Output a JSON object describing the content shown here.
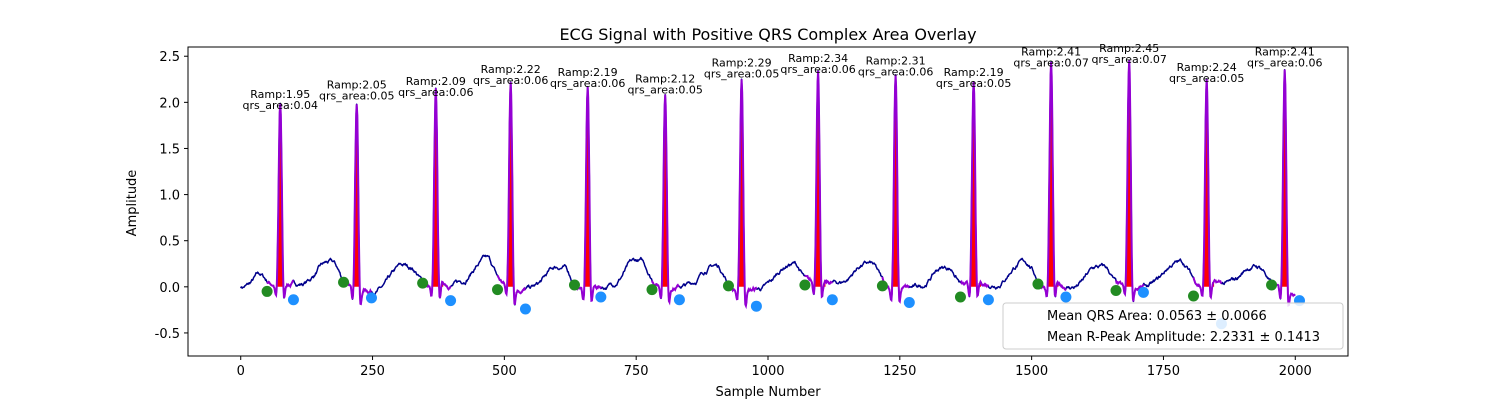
{
  "chart_data": {
    "type": "line",
    "title": "ECG Signal with Positive QRS Complex Area Overlay",
    "xlabel": "Sample Number",
    "ylabel": "Amplitude",
    "xlim": [
      -100,
      2100
    ],
    "ylim": [
      -0.75,
      2.6
    ],
    "xticks": [
      0,
      250,
      500,
      750,
      1000,
      1250,
      1500,
      1750,
      2000
    ],
    "yticks": [
      -0.5,
      0.0,
      0.5,
      1.0,
      1.5,
      2.0,
      2.5
    ],
    "legend": {
      "placement": "lower-right",
      "entries": [
        "Mean QRS Area: 0.0563 ± 0.0066",
        "Mean R-Peak Amplitude: 2.2331 ± 0.1413"
      ]
    },
    "colors": {
      "ecg": "#00008b",
      "qrs_segment": "#9400d3",
      "qrs_area": "#ff0000",
      "onset_marker": "#228b22",
      "offset_marker": "#1e90ff"
    },
    "beats": [
      {
        "r": 75,
        "ramp": 1.95,
        "area": 0.04,
        "onset": [
          50,
          -0.05
        ],
        "offset": [
          100,
          -0.14
        ],
        "ramp_label": "Ramp:1.95",
        "area_label": "qrs_area:0.04"
      },
      {
        "r": 220,
        "ramp": 2.05,
        "area": 0.05,
        "onset": [
          195,
          0.05
        ],
        "offset": [
          248,
          -0.12
        ],
        "ramp_label": "Ramp:2.05",
        "area_label": "qrs_area:0.05"
      },
      {
        "r": 370,
        "ramp": 2.09,
        "area": 0.06,
        "onset": [
          345,
          0.04
        ],
        "offset": [
          398,
          -0.15
        ],
        "ramp_label": "Ramp:2.09",
        "area_label": "qrs_area:0.06"
      },
      {
        "r": 512,
        "ramp": 2.22,
        "area": 0.06,
        "onset": [
          487,
          -0.03
        ],
        "offset": [
          540,
          -0.24
        ],
        "ramp_label": "Ramp:2.22",
        "area_label": "qrs_area:0.06"
      },
      {
        "r": 658,
        "ramp": 2.19,
        "area": 0.06,
        "onset": [
          633,
          0.02
        ],
        "offset": [
          683,
          -0.11
        ],
        "ramp_label": "Ramp:2.19",
        "area_label": "qrs_area:0.06"
      },
      {
        "r": 805,
        "ramp": 2.12,
        "area": 0.05,
        "onset": [
          780,
          -0.03
        ],
        "offset": [
          832,
          -0.14
        ],
        "ramp_label": "Ramp:2.12",
        "area_label": "qrs_area:0.05"
      },
      {
        "r": 950,
        "ramp": 2.29,
        "area": 0.05,
        "onset": [
          925,
          0.01
        ],
        "offset": [
          978,
          -0.21
        ],
        "ramp_label": "Ramp:2.29",
        "area_label": "qrs_area:0.05"
      },
      {
        "r": 1095,
        "ramp": 2.34,
        "area": 0.06,
        "onset": [
          1070,
          0.02
        ],
        "offset": [
          1122,
          -0.14
        ],
        "ramp_label": "Ramp:2.34",
        "area_label": "qrs_area:0.06"
      },
      {
        "r": 1242,
        "ramp": 2.31,
        "area": 0.06,
        "onset": [
          1217,
          0.01
        ],
        "offset": [
          1268,
          -0.17
        ],
        "ramp_label": "Ramp:2.31",
        "area_label": "qrs_area:0.06"
      },
      {
        "r": 1390,
        "ramp": 2.19,
        "area": 0.05,
        "onset": [
          1365,
          -0.11
        ],
        "offset": [
          1418,
          -0.14
        ],
        "ramp_label": "Ramp:2.19",
        "area_label": "qrs_area:0.05"
      },
      {
        "r": 1537,
        "ramp": 2.41,
        "area": 0.07,
        "onset": [
          1512,
          0.03
        ],
        "offset": [
          1565,
          -0.11
        ],
        "ramp_label": "Ramp:2.41",
        "area_label": "qrs_area:0.07"
      },
      {
        "r": 1685,
        "ramp": 2.45,
        "area": 0.07,
        "onset": [
          1660,
          -0.04
        ],
        "offset": [
          1712,
          -0.06
        ],
        "ramp_label": "Ramp:2.45",
        "area_label": "qrs_area:0.07"
      },
      {
        "r": 1832,
        "ramp": 2.24,
        "area": 0.05,
        "onset": [
          1807,
          -0.1
        ],
        "offset": [
          1860,
          -0.4
        ],
        "ramp_label": "Ramp:2.24",
        "area_label": "qrs_area:0.05"
      },
      {
        "r": 1980,
        "ramp": 2.41,
        "area": 0.06,
        "onset": [
          1955,
          0.02
        ],
        "offset": [
          2008,
          -0.15
        ],
        "ramp_label": "Ramp:2.41",
        "area_label": "qrs_area:0.06"
      }
    ]
  }
}
